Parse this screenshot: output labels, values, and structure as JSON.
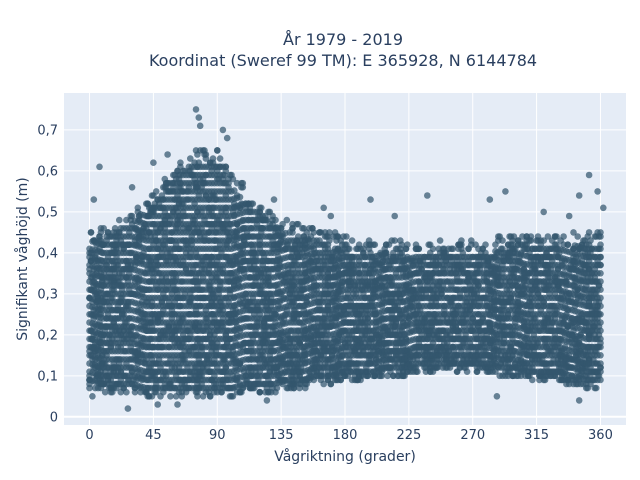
{
  "chart_data": {
    "type": "scatter",
    "title_lines": [
      "År 1979 - 2019",
      "Koordinat (Sweref 99 TM): E 365928, N 6144784"
    ],
    "xlabel": "Vågriktning (grader)",
    "ylabel": "Signifikant våghöjd (m)",
    "xlim": [
      -18,
      378
    ],
    "ylim": [
      -0.02,
      0.79
    ],
    "x_ticks": [
      0,
      45,
      90,
      135,
      180,
      225,
      270,
      315,
      360
    ],
    "x_tick_labels": [
      "0",
      "45",
      "90",
      "135",
      "180",
      "225",
      "270",
      "315",
      "360"
    ],
    "y_ticks": [
      0,
      0.1,
      0.2,
      0.3,
      0.4,
      0.5,
      0.6,
      0.7
    ],
    "y_tick_labels": [
      "0",
      "0,1",
      "0,2",
      "0,3",
      "0,4",
      "0,5",
      "0,6",
      "0,7"
    ],
    "grid": true,
    "legend": "none",
    "marker_color": "#33566d",
    "plot_background": "#e5ecf6",
    "envelope": {
      "direction": [
        0,
        10,
        20,
        30,
        40,
        50,
        60,
        70,
        80,
        90,
        100,
        110,
        120,
        130,
        140,
        150,
        160,
        170,
        180,
        190,
        200,
        210,
        220,
        230,
        240,
        250,
        260,
        270,
        280,
        290,
        300,
        310,
        320,
        330,
        340,
        350,
        360
      ],
      "lower_height": [
        0.07,
        0.06,
        0.06,
        0.06,
        0.05,
        0.05,
        0.05,
        0.05,
        0.05,
        0.05,
        0.05,
        0.06,
        0.06,
        0.06,
        0.07,
        0.07,
        0.08,
        0.08,
        0.09,
        0.09,
        0.09,
        0.1,
        0.1,
        0.11,
        0.11,
        0.11,
        0.11,
        0.11,
        0.11,
        0.1,
        0.1,
        0.09,
        0.09,
        0.09,
        0.08,
        0.07,
        0.07
      ],
      "upper_height": [
        0.46,
        0.47,
        0.48,
        0.51,
        0.54,
        0.57,
        0.61,
        0.64,
        0.66,
        0.65,
        0.6,
        0.56,
        0.52,
        0.5,
        0.48,
        0.47,
        0.46,
        0.45,
        0.44,
        0.43,
        0.43,
        0.43,
        0.43,
        0.43,
        0.43,
        0.43,
        0.43,
        0.43,
        0.43,
        0.44,
        0.44,
        0.44,
        0.45,
        0.45,
        0.45,
        0.45,
        0.45
      ]
    },
    "outliers": [
      {
        "x": 7,
        "y": 0.61
      },
      {
        "x": 3,
        "y": 0.53
      },
      {
        "x": 30,
        "y": 0.56
      },
      {
        "x": 45,
        "y": 0.62
      },
      {
        "x": 55,
        "y": 0.64
      },
      {
        "x": 75,
        "y": 0.75
      },
      {
        "x": 77,
        "y": 0.73
      },
      {
        "x": 78,
        "y": 0.71
      },
      {
        "x": 94,
        "y": 0.7
      },
      {
        "x": 97,
        "y": 0.68
      },
      {
        "x": 130,
        "y": 0.53
      },
      {
        "x": 165,
        "y": 0.51
      },
      {
        "x": 170,
        "y": 0.49
      },
      {
        "x": 198,
        "y": 0.53
      },
      {
        "x": 215,
        "y": 0.49
      },
      {
        "x": 238,
        "y": 0.54
      },
      {
        "x": 282,
        "y": 0.53
      },
      {
        "x": 293,
        "y": 0.55
      },
      {
        "x": 320,
        "y": 0.5
      },
      {
        "x": 338,
        "y": 0.49
      },
      {
        "x": 345,
        "y": 0.54
      },
      {
        "x": 352,
        "y": 0.59
      },
      {
        "x": 358,
        "y": 0.55
      },
      {
        "x": 362,
        "y": 0.51
      },
      {
        "x": 27,
        "y": 0.02
      },
      {
        "x": 48,
        "y": 0.03
      },
      {
        "x": 62,
        "y": 0.03
      },
      {
        "x": 80,
        "y": 0.05
      },
      {
        "x": 125,
        "y": 0.04
      },
      {
        "x": 287,
        "y": 0.05
      },
      {
        "x": 345,
        "y": 0.04
      },
      {
        "x": 2,
        "y": 0.05
      },
      {
        "x": 0,
        "y": 0.09
      },
      {
        "x": 4,
        "y": 0.38
      },
      {
        "x": 10,
        "y": 0.28
      },
      {
        "x": 360,
        "y": 0.42
      }
    ]
  }
}
